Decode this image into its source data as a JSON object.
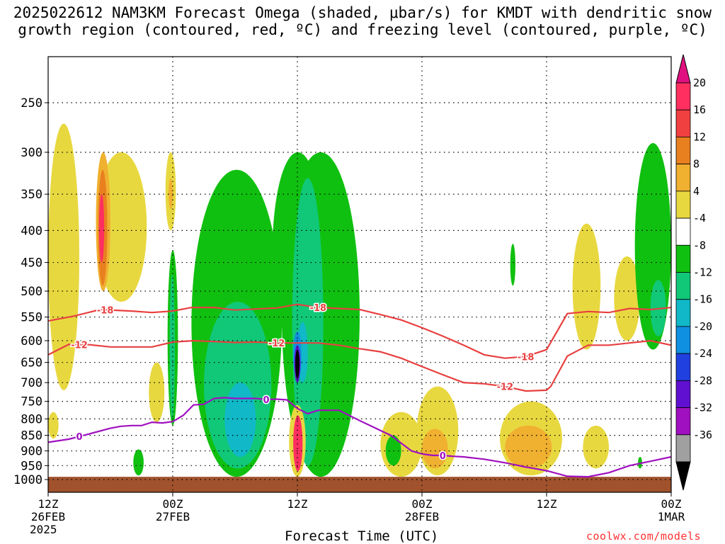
{
  "title_line1": "2025022612 NAM3KM Forecast Omega (shaded, μbar/s) for KMDT with dendritic snow",
  "title_line2": "growth region (contoured, red, ºC) and freezing level (contoured, purple, ºC)",
  "x_axis_title": "Forecast Time (UTC)",
  "x_year": "2025",
  "credit": "coolwx.com/models",
  "chart_data": {
    "type": "heatmap",
    "title": "2025022612 NAM3KM Forecast Omega (shaded, μbar/s) for KMDT with dendritic snow growth region (contoured, red, ºC) and freezing level (contoured, purple, ºC)",
    "xlabel": "Forecast Time (UTC)",
    "ylabel": "",
    "x_unit": "forecast hour (0 = 12Z 26FEB 2025)",
    "xlim": [
      0,
      60
    ],
    "y_unit": "hPa",
    "ylim": [
      1000,
      200
    ],
    "y_scale": "log",
    "y_ticks": [
      250,
      300,
      350,
      400,
      450,
      500,
      550,
      600,
      650,
      700,
      750,
      800,
      850,
      900,
      950,
      1000
    ],
    "x_ticks": [
      {
        "h": 0,
        "l1": "12Z",
        "l2": "26FEB"
      },
      {
        "h": 12,
        "l1": "00Z",
        "l2": "27FEB"
      },
      {
        "h": 24,
        "l1": "12Z",
        "l2": ""
      },
      {
        "h": 36,
        "l1": "00Z",
        "l2": "28FEB"
      },
      {
        "h": 48,
        "l1": "12Z",
        "l2": ""
      },
      {
        "h": 60,
        "l1": "00Z",
        "l2": "1MAR"
      }
    ],
    "grid": true,
    "colorbar": {
      "position": "right",
      "labels": [
        "20",
        "16",
        "12",
        "8",
        "4",
        "-4",
        "-8",
        "-12",
        "-16",
        "-20",
        "-24",
        "-28",
        "-32",
        "-36"
      ],
      "colors": [
        "#ff3060",
        "#f04040",
        "#e88020",
        "#f0b030",
        "#e8d840",
        "#ffffff",
        "#10c010",
        "#10c878",
        "#10b8c8",
        "#1090e0",
        "#2040e0",
        "#6010d0",
        "#a010c0",
        "#a0a0a0"
      ],
      "top_arrow": "#e01080",
      "bottom_arrow": "#000000"
    },
    "omega_regions": [
      {
        "color": "#e8d840",
        "h": [
          0,
          3
        ],
        "p": [
          270,
          720
        ]
      },
      {
        "color": "#e8d840",
        "h": [
          0,
          1
        ],
        "p": [
          780,
          860
        ]
      },
      {
        "color": "#e8d840",
        "h": [
          4.6,
          9.5
        ],
        "p": [
          300,
          520
        ]
      },
      {
        "color": "#f0b030",
        "h": [
          4.6,
          6
        ],
        "p": [
          300,
          500
        ]
      },
      {
        "color": "#e88020",
        "h": [
          4.8,
          5.7
        ],
        "p": [
          320,
          490
        ]
      },
      {
        "color": "#ff3060",
        "h": [
          4.9,
          5.4
        ],
        "p": [
          350,
          450
        ]
      },
      {
        "color": "#e8d840",
        "h": [
          11.3,
          12.3
        ],
        "p": [
          300,
          400
        ]
      },
      {
        "color": "#f0b030",
        "h": [
          11.6,
          12
        ],
        "p": [
          330,
          370
        ]
      },
      {
        "color": "#e8d840",
        "h": [
          9.7,
          11.2
        ],
        "p": [
          650,
          810
        ]
      },
      {
        "color": "#10c010",
        "h": [
          8.2,
          9.2
        ],
        "p": [
          895,
          985
        ]
      },
      {
        "color": "#10c010",
        "h": [
          11.5,
          12.5
        ],
        "p": [
          430,
          820
        ]
      },
      {
        "color": "#10c878",
        "h": [
          11.7,
          12.2
        ],
        "p": [
          470,
          800
        ]
      },
      {
        "color": "#10c010",
        "h": [
          13.8,
          22.5
        ],
        "p": [
          320,
          990
        ]
      },
      {
        "color": "#10c878",
        "h": [
          15,
          21.5
        ],
        "p": [
          520,
          960
        ]
      },
      {
        "color": "#10b8c8",
        "h": [
          17,
          20
        ],
        "p": [
          700,
          920
        ]
      },
      {
        "color": "#10c010",
        "h": [
          21.6,
          26.5
        ],
        "p": [
          300,
          620
        ]
      },
      {
        "color": "#10c010",
        "h": [
          22.5,
          30
        ],
        "p": [
          300,
          990
        ]
      },
      {
        "color": "#10c878",
        "h": [
          23.5,
          26.5
        ],
        "p": [
          330,
          950
        ]
      },
      {
        "color": "#10b8c8",
        "h": [
          24,
          25
        ],
        "p": [
          560,
          700
        ]
      },
      {
        "color": "#1090e0",
        "h": [
          23.6,
          24.4
        ],
        "p": [
          580,
          690
        ]
      },
      {
        "color": "#6010d0",
        "h": [
          23.7,
          24.3
        ],
        "p": [
          610,
          700
        ]
      },
      {
        "color": "#000000",
        "h": [
          23.8,
          24.2
        ],
        "p": [
          620,
          690
        ]
      },
      {
        "color": "#e8d840",
        "h": [
          23.2,
          24.8
        ],
        "p": [
          760,
          990
        ]
      },
      {
        "color": "#ff3060",
        "h": [
          23.6,
          24.5
        ],
        "p": [
          790,
          970
        ]
      },
      {
        "color": "#e8d840",
        "h": [
          32,
          36
        ],
        "p": [
          780,
          990
        ]
      },
      {
        "color": "#10c010",
        "h": [
          32.5,
          34
        ],
        "p": [
          850,
          950
        ]
      },
      {
        "color": "#e8d840",
        "h": [
          35.5,
          39.5
        ],
        "p": [
          710,
          985
        ]
      },
      {
        "color": "#f0b030",
        "h": [
          36,
          38.5
        ],
        "p": [
          830,
          960
        ]
      },
      {
        "color": "#e8d840",
        "h": [
          43.5,
          49.5
        ],
        "p": [
          750,
          985
        ]
      },
      {
        "color": "#f0b030",
        "h": [
          44,
          48.5
        ],
        "p": [
          820,
          960
        ]
      },
      {
        "color": "#e8d840",
        "h": [
          51.5,
          54
        ],
        "p": [
          820,
          960
        ]
      },
      {
        "color": "#e8d840",
        "h": [
          50.5,
          53.2
        ],
        "p": [
          390,
          620
        ]
      },
      {
        "color": "#e8d840",
        "h": [
          54.5,
          57
        ],
        "p": [
          440,
          600
        ]
      },
      {
        "color": "#10c010",
        "h": [
          56.5,
          60
        ],
        "p": [
          290,
          620
        ]
      },
      {
        "color": "#10c878",
        "h": [
          58,
          59.5
        ],
        "p": [
          480,
          590
        ]
      },
      {
        "color": "#10c010",
        "h": [
          44.5,
          45
        ],
        "p": [
          420,
          490
        ]
      },
      {
        "color": "#10c010",
        "h": [
          56.8,
          57.2
        ],
        "p": [
          920,
          960
        ]
      }
    ],
    "contours": [
      {
        "label": "-18",
        "color": "#e84040",
        "x": [
          0,
          2.5,
          5,
          8,
          10,
          12,
          13.8,
          16,
          18,
          20,
          22,
          24,
          26,
          28,
          30,
          32,
          34,
          36,
          38,
          40,
          42,
          44,
          46,
          48,
          50,
          52,
          54,
          56,
          58,
          60
        ],
        "y": [
          558,
          548,
          535,
          538,
          541,
          538,
          531,
          531,
          536,
          534,
          532,
          525,
          531,
          533,
          535,
          545,
          556,
          572,
          590,
          610,
          632,
          640,
          636,
          620,
          543,
          539,
          541,
          533,
          535,
          531
        ]
      },
      {
        "label": "-12",
        "color": "#e84040",
        "x": [
          0,
          2,
          4,
          6,
          8,
          10,
          12,
          14,
          16,
          18,
          20,
          22,
          24,
          26,
          28,
          30,
          32,
          34,
          36,
          38,
          40,
          42,
          44,
          46,
          48,
          48.4,
          50,
          52,
          54,
          56,
          58,
          60
        ],
        "y": [
          632,
          608,
          609,
          614,
          614,
          614,
          603,
          600,
          602,
          604,
          603,
          605,
          605,
          605,
          610,
          618,
          625,
          640,
          660,
          680,
          700,
          703,
          710,
          722,
          720,
          710,
          635,
          610,
          610,
          605,
          600,
          610
        ]
      },
      {
        "label": "0",
        "color": "#a010c0",
        "x": [
          0,
          2,
          4,
          6,
          7,
          8,
          9,
          10,
          11,
          12,
          13,
          14,
          15,
          16,
          17,
          18,
          19,
          20,
          21,
          22,
          23,
          24,
          25,
          26,
          27,
          28,
          29,
          30,
          31,
          32,
          33,
          34,
          35,
          36,
          37,
          38,
          39,
          40,
          42,
          44,
          46,
          48,
          50,
          52,
          54,
          56,
          58,
          60
        ],
        "y": [
          872,
          862,
          845,
          828,
          822,
          820,
          820,
          810,
          812,
          808,
          790,
          760,
          758,
          742,
          740,
          742,
          742,
          742,
          745,
          744,
          746,
          770,
          785,
          775,
          775,
          775,
          790,
          805,
          820,
          835,
          850,
          875,
          900,
          910,
          915,
          915,
          918,
          920,
          928,
          940,
          955,
          968,
          988,
          990,
          975,
          950,
          935,
          920
        ]
      }
    ]
  }
}
